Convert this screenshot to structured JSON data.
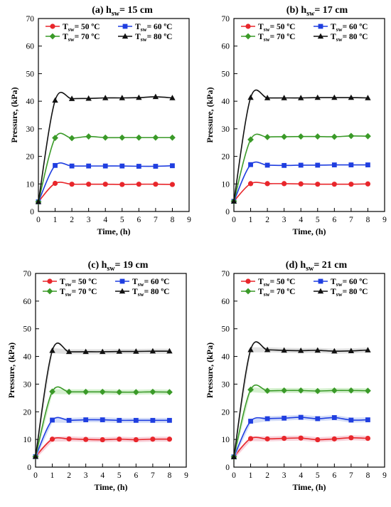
{
  "figure": {
    "background": "#ffffff"
  },
  "legend_entries": [
    {
      "prefix": "T",
      "sub": "sw",
      "value": "= 50 ºC",
      "color": "#e8262b",
      "marker": "circle"
    },
    {
      "prefix": "T",
      "sub": "sw",
      "value": "= 60 ºC",
      "color": "#1f3ee0",
      "marker": "square"
    },
    {
      "prefix": "T",
      "sub": "sw",
      "value": "= 70 ºC",
      "color": "#3a9a28",
      "marker": "diamond"
    },
    {
      "prefix": "T",
      "sub": "sw",
      "value": "= 80 ºC",
      "color": "#111111",
      "marker": "triangle"
    }
  ],
  "chart_data": [
    {
      "type": "line",
      "title_prefix": "(a) h",
      "title_sub": "sw",
      "title_suffix": "= 15 cm",
      "xlabel": "Time, (h)",
      "ylabel": "Pressure, (kPa)",
      "xlim": [
        0,
        9
      ],
      "ylim": [
        0,
        70
      ],
      "xticks": [
        "0",
        "1",
        "2",
        "3",
        "4",
        "5",
        "6",
        "7",
        "8",
        "9"
      ],
      "yticks": [
        "0",
        "10",
        "20",
        "30",
        "40",
        "50",
        "60",
        "70"
      ],
      "grid": false,
      "legend_position": "top",
      "band": false,
      "x": [
        0,
        1,
        2,
        3,
        4,
        5,
        6,
        7,
        8
      ],
      "series": [
        {
          "name": "Tsw= 50 ºC",
          "values": [
            3.5,
            10.2,
            9.9,
            9.9,
            9.9,
            9.8,
            9.9,
            9.9,
            9.8
          ]
        },
        {
          "name": "Tsw= 60 ºC",
          "values": [
            3.5,
            16.7,
            16.5,
            16.5,
            16.5,
            16.5,
            16.4,
            16.4,
            16.6
          ]
        },
        {
          "name": "Tsw= 70 ºC",
          "values": [
            3.5,
            26.7,
            26.6,
            27.2,
            26.8,
            26.8,
            26.8,
            26.8,
            26.8
          ]
        },
        {
          "name": "Tsw= 80 ºC",
          "values": [
            3.5,
            40.3,
            40.9,
            41.0,
            41.2,
            41.2,
            41.3,
            41.6,
            41.2
          ]
        }
      ]
    },
    {
      "type": "line",
      "title_prefix": "(b) h",
      "title_sub": "sw",
      "title_suffix": "= 17 cm",
      "xlabel": "Time, (h)",
      "ylabel": "Pressure, (kPa)",
      "xlim": [
        0,
        9
      ],
      "ylim": [
        0,
        70
      ],
      "xticks": [
        "0",
        "1",
        "2",
        "3",
        "4",
        "5",
        "6",
        "7",
        "8",
        "9"
      ],
      "yticks": [
        "0",
        "10",
        "20",
        "30",
        "40",
        "50",
        "60",
        "70"
      ],
      "grid": false,
      "legend_position": "top",
      "band": false,
      "x": [
        0,
        1,
        2,
        3,
        4,
        5,
        6,
        7,
        8
      ],
      "series": [
        {
          "name": "Tsw= 50 ºC",
          "values": [
            3.7,
            10.1,
            10.1,
            10.1,
            10.0,
            9.9,
            9.9,
            9.9,
            10.0
          ]
        },
        {
          "name": "Tsw= 60 ºC",
          "values": [
            3.7,
            17.0,
            16.8,
            16.7,
            16.8,
            16.8,
            16.9,
            16.9,
            16.9
          ]
        },
        {
          "name": "Tsw= 70 ºC",
          "values": [
            3.7,
            26.1,
            27.0,
            27.1,
            27.2,
            27.2,
            27.1,
            27.4,
            27.3
          ]
        },
        {
          "name": "Tsw= 80 ºC",
          "values": [
            3.7,
            41.3,
            41.2,
            41.2,
            41.2,
            41.3,
            41.3,
            41.3,
            41.2
          ]
        }
      ]
    },
    {
      "type": "line",
      "title_prefix": "(c) h",
      "title_sub": "sw",
      "title_suffix": "= 19 cm",
      "xlabel": "Time, (h)",
      "ylabel": "Pressure, (kPa)",
      "xlim": [
        0,
        9
      ],
      "ylim": [
        0,
        70
      ],
      "xticks": [
        "0",
        "1",
        "2",
        "3",
        "4",
        "5",
        "6",
        "7",
        "8",
        "9"
      ],
      "yticks": [
        "0",
        "10",
        "20",
        "30",
        "40",
        "50",
        "60",
        "70"
      ],
      "grid": false,
      "legend_position": "top",
      "band": true,
      "x": [
        0,
        1,
        2,
        3,
        4,
        5,
        6,
        7,
        8
      ],
      "series": [
        {
          "name": "Tsw= 50 ºC",
          "values": [
            3.8,
            10.1,
            10.2,
            10.0,
            9.9,
            10.1,
            9.9,
            10.1,
            10.1
          ]
        },
        {
          "name": "Tsw= 60 ºC",
          "values": [
            3.8,
            17.0,
            16.9,
            17.1,
            17.1,
            16.9,
            16.9,
            16.9,
            16.9
          ]
        },
        {
          "name": "Tsw= 70 ºC",
          "values": [
            3.8,
            27.3,
            27.2,
            27.2,
            27.2,
            27.1,
            27.1,
            27.2,
            27.1
          ]
        },
        {
          "name": "Tsw= 80 ºC",
          "values": [
            3.8,
            42.1,
            41.7,
            41.7,
            41.7,
            41.8,
            41.8,
            41.9,
            41.9
          ]
        }
      ]
    },
    {
      "type": "line",
      "title_prefix": "(d) h",
      "title_sub": "sw",
      "title_suffix": "= 21 cm",
      "xlabel": "Time, (h)",
      "ylabel": "Pressure, (kPa)",
      "xlim": [
        0,
        9
      ],
      "ylim": [
        0,
        70
      ],
      "xticks": [
        "0",
        "1",
        "2",
        "3",
        "4",
        "5",
        "6",
        "7",
        "8",
        "9"
      ],
      "yticks": [
        "0",
        "10",
        "20",
        "30",
        "40",
        "50",
        "60",
        "70"
      ],
      "grid": false,
      "legend_position": "top",
      "band": true,
      "x": [
        0,
        1,
        2,
        3,
        4,
        5,
        6,
        7,
        8
      ],
      "series": [
        {
          "name": "Tsw= 50 ºC",
          "values": [
            3.7,
            10.3,
            10.2,
            10.4,
            10.5,
            9.9,
            10.2,
            10.6,
            10.4
          ]
        },
        {
          "name": "Tsw= 60 ºC",
          "values": [
            3.7,
            16.6,
            17.5,
            17.7,
            18.0,
            17.5,
            17.9,
            17.0,
            17.1
          ]
        },
        {
          "name": "Tsw= 70 ºC",
          "values": [
            3.7,
            28.0,
            27.6,
            27.7,
            27.7,
            27.5,
            27.7,
            27.7,
            27.6
          ]
        },
        {
          "name": "Tsw= 80 ºC",
          "values": [
            3.7,
            42.4,
            42.4,
            42.2,
            42.1,
            42.2,
            41.9,
            42.0,
            42.3
          ]
        }
      ]
    }
  ]
}
